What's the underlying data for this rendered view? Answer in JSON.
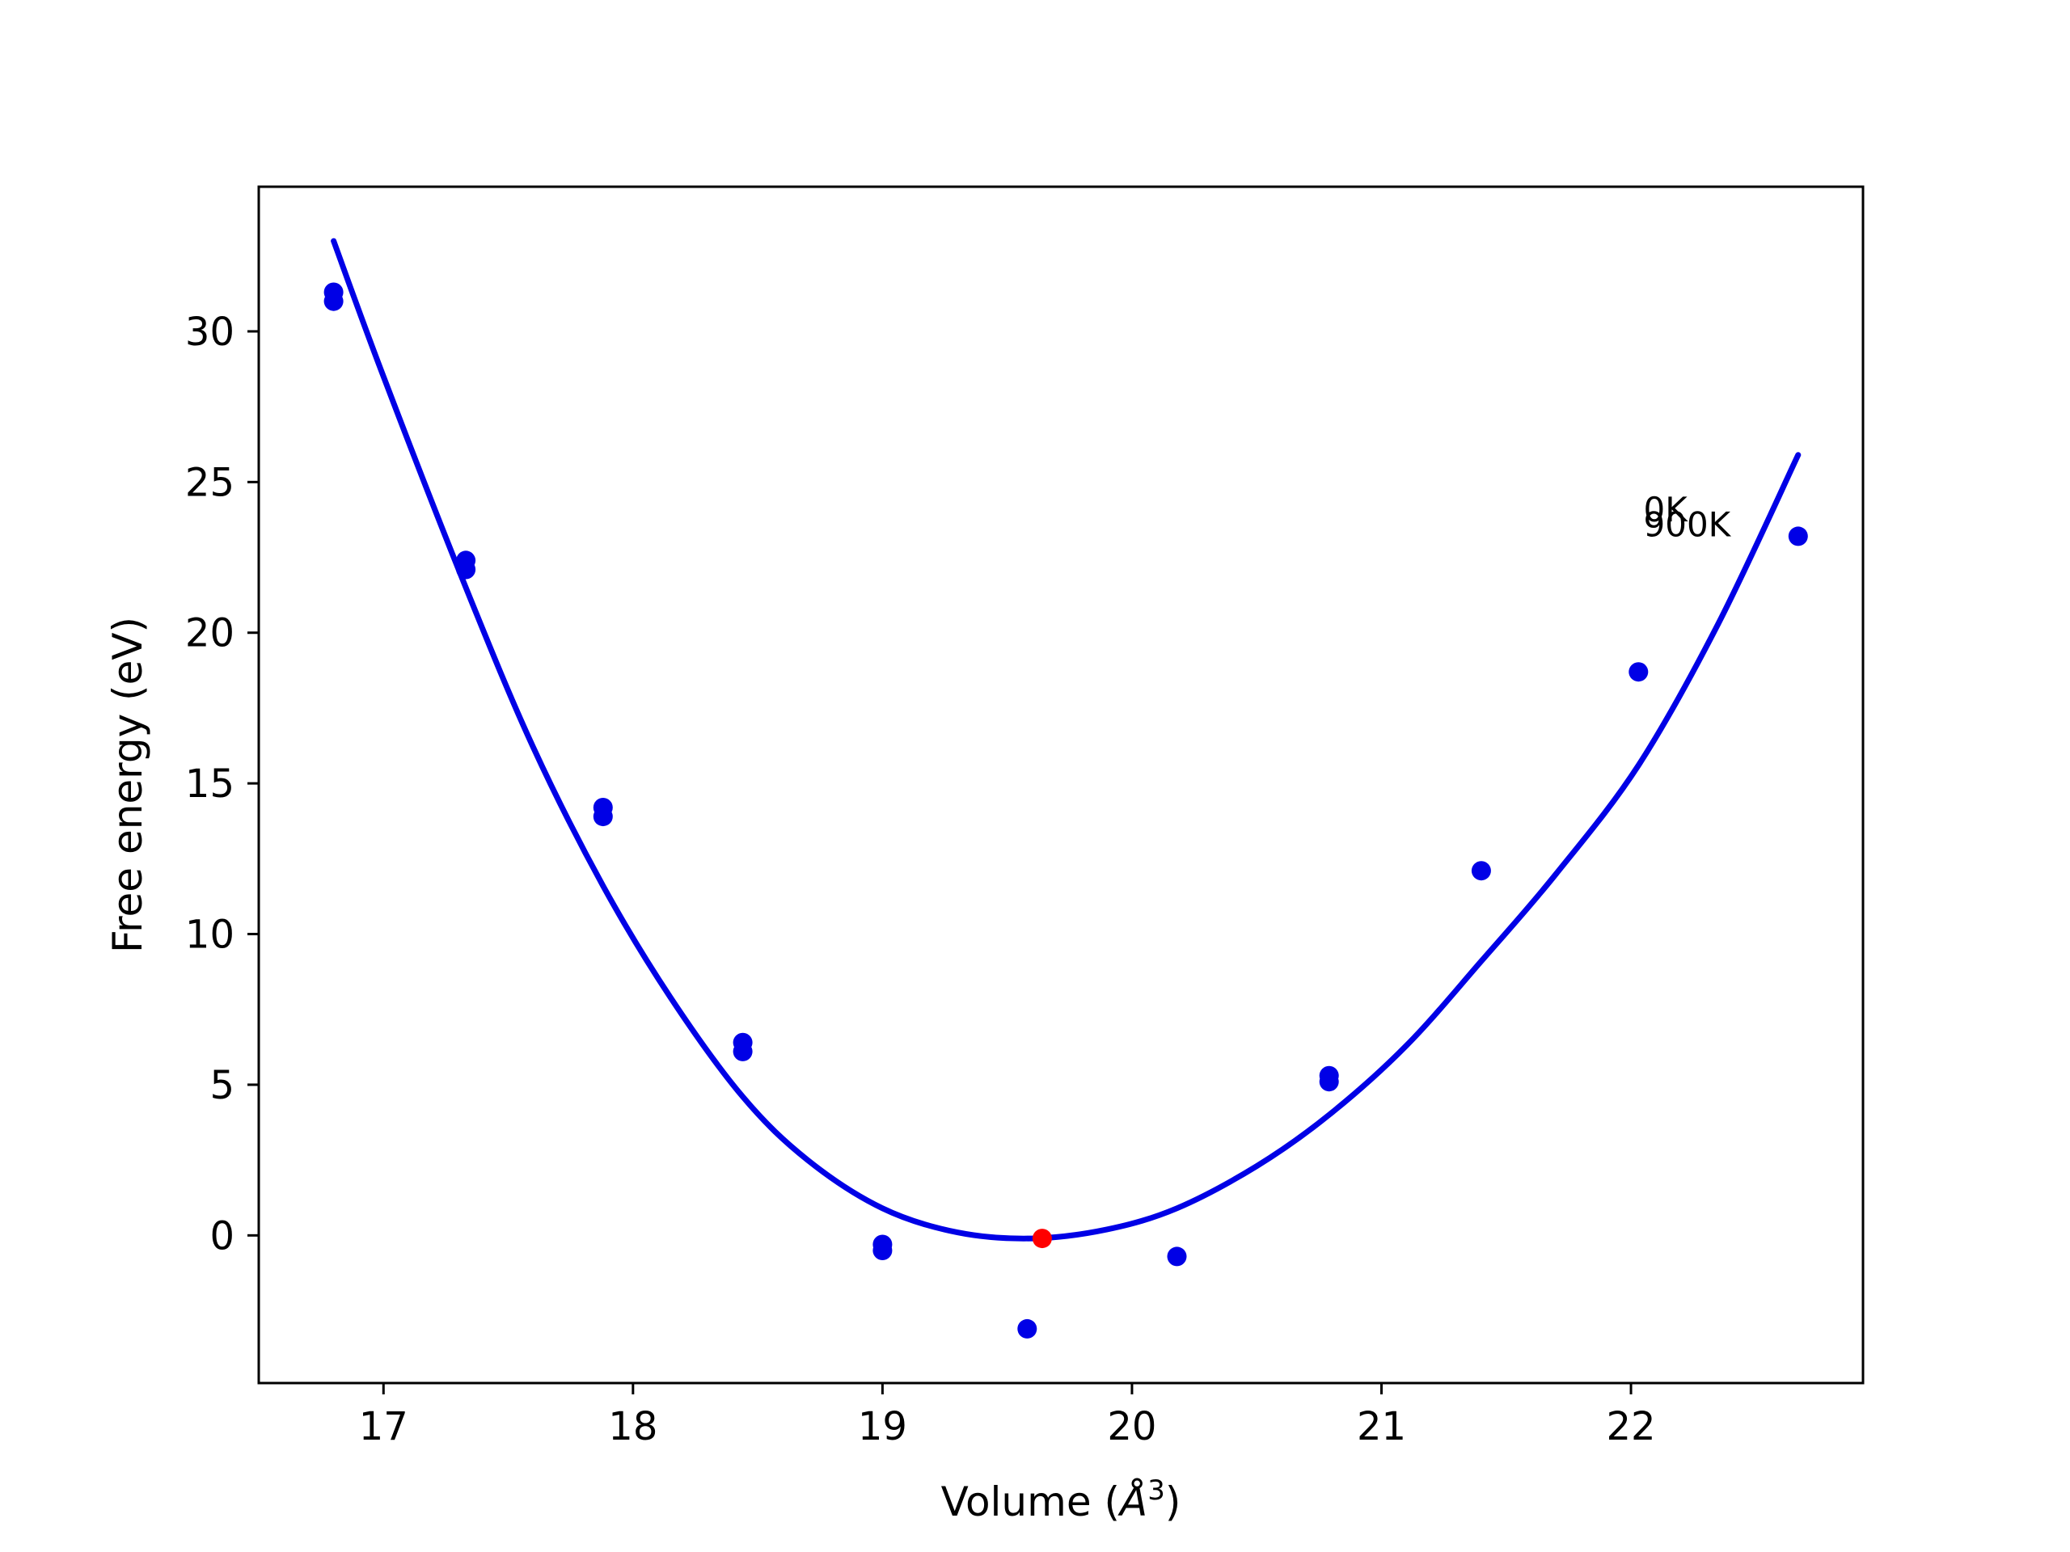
{
  "chart_data": {
    "type": "scatter",
    "title": "",
    "xlabel": "Volume (Å³)",
    "xlabel_parts": {
      "base": "Volume (",
      "italic": "Å",
      "sup": "3",
      "close": ")"
    },
    "ylabel": "Free energy (eV)",
    "xlim": [
      16.5,
      22.93
    ],
    "ylim": [
      -4.9,
      34.8
    ],
    "xticks": [
      17,
      18,
      19,
      20,
      21,
      22
    ],
    "yticks": [
      0,
      5,
      10,
      15,
      20,
      25,
      30
    ],
    "grid": false,
    "legend": "none",
    "colors": {
      "points": "#0000e6",
      "fit": "#0000e6",
      "minimum": "#ff0000",
      "frame": "#000000"
    },
    "series": [
      {
        "kind": "points",
        "x": [
          16.8,
          16.8,
          17.33,
          17.33,
          17.88,
          17.88,
          18.44,
          18.44,
          19.0,
          19.0,
          19.58,
          20.18,
          20.79,
          20.79,
          21.4,
          22.03,
          22.67
        ],
        "y": [
          31.3,
          31.0,
          22.4,
          22.1,
          14.2,
          13.9,
          6.4,
          6.1,
          -0.3,
          -0.5,
          -3.1,
          -0.7,
          5.3,
          5.1,
          12.1,
          18.7,
          23.2
        ]
      },
      {
        "kind": "curve",
        "x": [
          16.8,
          17.0,
          17.33,
          17.6,
          17.88,
          18.15,
          18.44,
          18.7,
          19.0,
          19.3,
          19.6,
          19.9,
          20.18,
          20.5,
          20.79,
          21.1,
          21.4,
          21.7,
          22.03,
          22.35,
          22.67
        ],
        "y": [
          33.0,
          28.5,
          21.5,
          16.2,
          11.6,
          7.9,
          4.6,
          2.5,
          0.9,
          0.1,
          -0.1,
          0.2,
          0.9,
          2.3,
          4.0,
          6.3,
          9.1,
          12.0,
          15.6,
          20.3,
          25.9
        ]
      },
      {
        "kind": "minimum",
        "x": [
          19.64
        ],
        "y": [
          -0.1
        ]
      }
    ],
    "annotations": [
      {
        "text": "0K",
        "x": 22.05,
        "y": 23.7
      },
      {
        "text": "900K",
        "x": 22.05,
        "y": 23.2
      }
    ]
  }
}
